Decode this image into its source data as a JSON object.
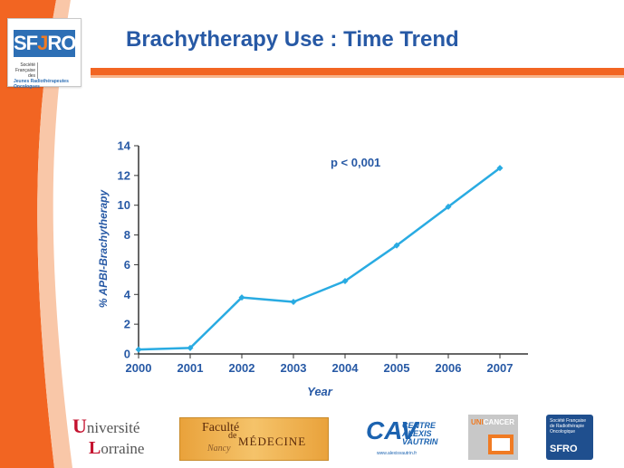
{
  "slide": {
    "title": "Brachytherapy Use : Time Trend"
  },
  "header_logo": {
    "name_prefix": "SF",
    "name_j": "J",
    "name_suffix": "RO",
    "col1": "Société Française des",
    "col2": "Jeunes Radiothérapeutes Oncologues"
  },
  "colors": {
    "title": "#2759a5",
    "accent": "#f26522",
    "line": "#29abe2",
    "axis_text": "#2759a5"
  },
  "chart_data": {
    "type": "line",
    "title": "",
    "annotation": "p < 0,001",
    "xlabel": "Year",
    "ylabel": "% APBI-Brachytherapy",
    "x": [
      "2000",
      "2001",
      "2002",
      "2003",
      "2004",
      "2005",
      "2006",
      "2007"
    ],
    "series": [
      {
        "values": [
          0.3,
          0.4,
          3.8,
          3.5,
          4.9,
          7.3,
          9.9,
          12.5
        ]
      }
    ],
    "yticks": [
      0,
      2,
      4,
      6,
      8,
      10,
      12,
      14
    ],
    "ylim": [
      0,
      14
    ],
    "grid": false
  },
  "footer_logos": {
    "lorraine_line1": "niversité",
    "lorraine_u": "U",
    "lorraine_line2": "orraine",
    "lorraine_l": "L",
    "fac_line1": "Faculté",
    "fac_de": "de",
    "fac_med": "MÉDECINE",
    "fac_city": "Nancy",
    "cav_mark": "CAV",
    "cav_line1": "CENTRE",
    "cav_line2": "ALEXIS",
    "cav_line3": "VAUTRIN",
    "cav_url": "www.alexisvautrin.fr",
    "unicancer_a": "UNI",
    "unicancer_b": "CANCER",
    "sfro_small": "Société Française de Radiothérapie Oncologique",
    "sfro_big": "SFRO"
  }
}
